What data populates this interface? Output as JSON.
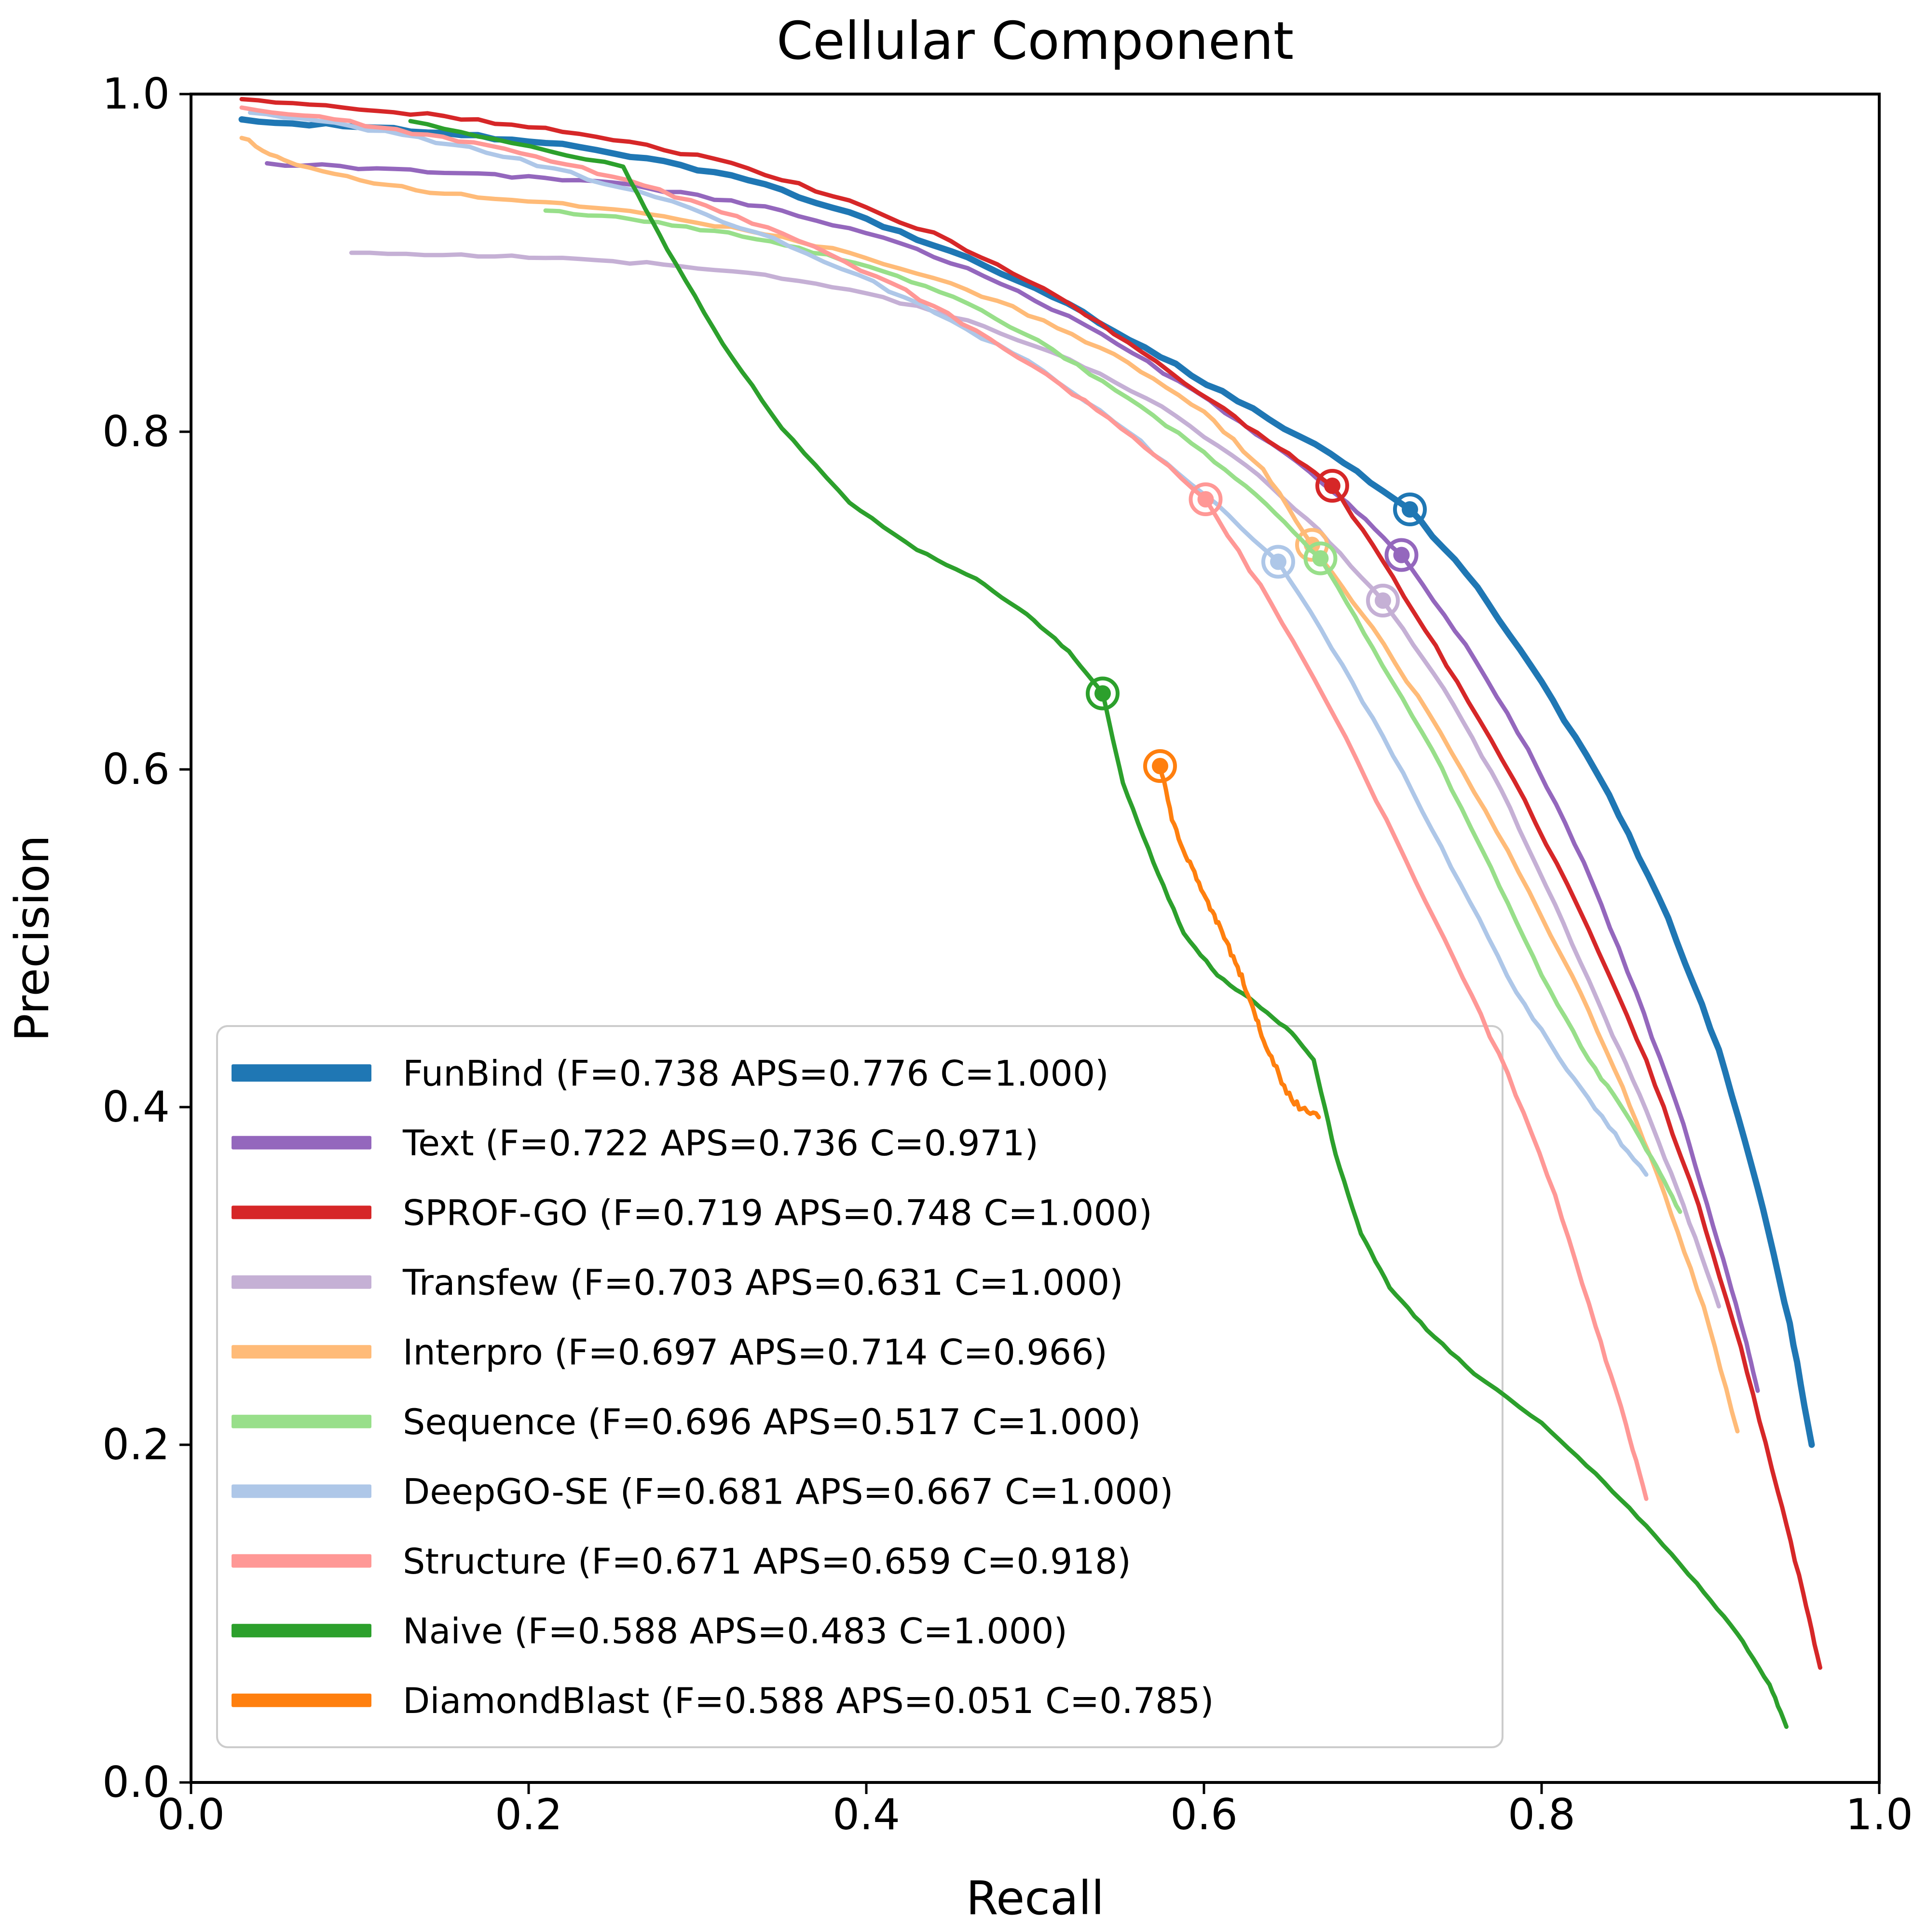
{
  "chart_data": {
    "type": "line",
    "title": "Cellular Component",
    "xlabel": "Recall",
    "ylabel": "Precision",
    "xlim": [
      0.0,
      1.0
    ],
    "ylim": [
      0.0,
      1.0
    ],
    "xticks": [
      "0.0",
      "0.2",
      "0.4",
      "0.6",
      "0.8",
      "1.0"
    ],
    "yticks": [
      "0.0",
      "0.2",
      "0.4",
      "0.6",
      "0.8",
      "1.0"
    ],
    "grid": false,
    "legend_position": "lower left",
    "series": [
      {
        "name": "FunBind",
        "legend_label": "FunBind (F=0.738 APS=0.776 C=1.000)",
        "color": "#1f77b4",
        "linewidth": 13,
        "f": 0.738,
        "aps": 0.776,
        "c": 1.0,
        "fmax_point": [
          0.722,
          0.754
        ],
        "jitter": 4,
        "points": [
          [
            0.03,
            0.985
          ],
          [
            0.09,
            0.981
          ],
          [
            0.15,
            0.977
          ],
          [
            0.21,
            0.971
          ],
          [
            0.27,
            0.962
          ],
          [
            0.33,
            0.949
          ],
          [
            0.39,
            0.93
          ],
          [
            0.45,
            0.907
          ],
          [
            0.51,
            0.88
          ],
          [
            0.565,
            0.85
          ],
          [
            0.62,
            0.818
          ],
          [
            0.675,
            0.787
          ],
          [
            0.722,
            0.754
          ],
          [
            0.762,
            0.708
          ],
          [
            0.8,
            0.652
          ],
          [
            0.84,
            0.585
          ],
          [
            0.875,
            0.512
          ],
          [
            0.905,
            0.434
          ],
          [
            0.928,
            0.352
          ],
          [
            0.947,
            0.272
          ],
          [
            0.96,
            0.2
          ]
        ]
      },
      {
        "name": "Text",
        "legend_label": "Text (F=0.722 APS=0.736 C=0.971)",
        "color": "#9467bd",
        "linewidth": 9,
        "f": 0.722,
        "aps": 0.736,
        "c": 0.971,
        "fmax_point": [
          0.717,
          0.727
        ],
        "jitter": 4,
        "points": [
          [
            0.045,
            0.959
          ],
          [
            0.11,
            0.956
          ],
          [
            0.17,
            0.953
          ],
          [
            0.23,
            0.949
          ],
          [
            0.29,
            0.942
          ],
          [
            0.35,
            0.931
          ],
          [
            0.41,
            0.915
          ],
          [
            0.47,
            0.892
          ],
          [
            0.53,
            0.863
          ],
          [
            0.585,
            0.83
          ],
          [
            0.64,
            0.793
          ],
          [
            0.685,
            0.758
          ],
          [
            0.717,
            0.727
          ],
          [
            0.755,
            0.674
          ],
          [
            0.792,
            0.612
          ],
          [
            0.825,
            0.545
          ],
          [
            0.856,
            0.468
          ],
          [
            0.884,
            0.39
          ],
          [
            0.905,
            0.318
          ],
          [
            0.92,
            0.265
          ],
          [
            0.928,
            0.232
          ]
        ]
      },
      {
        "name": "SPROF-GO",
        "legend_label": "SPROF-GO (F=0.719 APS=0.748 C=1.000)",
        "color": "#d62728",
        "linewidth": 9,
        "f": 0.719,
        "aps": 0.748,
        "c": 1.0,
        "fmax_point": [
          0.676,
          0.768
        ],
        "jitter": 4,
        "points": [
          [
            0.03,
            0.997
          ],
          [
            0.09,
            0.992
          ],
          [
            0.15,
            0.987
          ],
          [
            0.21,
            0.98
          ],
          [
            0.27,
            0.97
          ],
          [
            0.33,
            0.956
          ],
          [
            0.39,
            0.937
          ],
          [
            0.45,
            0.913
          ],
          [
            0.505,
            0.885
          ],
          [
            0.555,
            0.853
          ],
          [
            0.605,
            0.818
          ],
          [
            0.645,
            0.79
          ],
          [
            0.676,
            0.768
          ],
          [
            0.712,
            0.714
          ],
          [
            0.75,
            0.652
          ],
          [
            0.79,
            0.582
          ],
          [
            0.828,
            0.505
          ],
          [
            0.862,
            0.428
          ],
          [
            0.893,
            0.342
          ],
          [
            0.918,
            0.258
          ],
          [
            0.94,
            0.172
          ],
          [
            0.955,
            0.112
          ],
          [
            0.965,
            0.068
          ]
        ]
      },
      {
        "name": "Transfew",
        "legend_label": "Transfew (F=0.703 APS=0.631 C=1.000)",
        "color": "#c5b0d5",
        "linewidth": 9,
        "f": 0.703,
        "aps": 0.631,
        "c": 1.0,
        "fmax_point": [
          0.706,
          0.7
        ],
        "jitter": 3,
        "points": [
          [
            0.095,
            0.906
          ],
          [
            0.16,
            0.905
          ],
          [
            0.22,
            0.903
          ],
          [
            0.28,
            0.899
          ],
          [
            0.34,
            0.893
          ],
          [
            0.4,
            0.882
          ],
          [
            0.46,
            0.866
          ],
          [
            0.52,
            0.843
          ],
          [
            0.575,
            0.815
          ],
          [
            0.625,
            0.78
          ],
          [
            0.668,
            0.742
          ],
          [
            0.706,
            0.7
          ],
          [
            0.742,
            0.648
          ],
          [
            0.776,
            0.588
          ],
          [
            0.808,
            0.52
          ],
          [
            0.838,
            0.452
          ],
          [
            0.862,
            0.398
          ],
          [
            0.884,
            0.342
          ],
          [
            0.905,
            0.282
          ]
        ]
      },
      {
        "name": "Interpro",
        "legend_label": "Interpro (F=0.697 APS=0.714 C=0.966)",
        "color": "#ffbb78",
        "linewidth": 9,
        "f": 0.697,
        "aps": 0.714,
        "c": 0.966,
        "fmax_point": [
          0.664,
          0.733
        ],
        "jitter": 4,
        "points": [
          [
            0.03,
            0.974
          ],
          [
            0.055,
            0.961
          ],
          [
            0.1,
            0.949
          ],
          [
            0.15,
            0.941
          ],
          [
            0.21,
            0.936
          ],
          [
            0.27,
            0.929
          ],
          [
            0.33,
            0.919
          ],
          [
            0.39,
            0.906
          ],
          [
            0.45,
            0.888
          ],
          [
            0.505,
            0.866
          ],
          [
            0.555,
            0.841
          ],
          [
            0.6,
            0.812
          ],
          [
            0.635,
            0.778
          ],
          [
            0.664,
            0.733
          ],
          [
            0.7,
            0.684
          ],
          [
            0.74,
            0.622
          ],
          [
            0.78,
            0.552
          ],
          [
            0.818,
            0.478
          ],
          [
            0.848,
            0.412
          ],
          [
            0.873,
            0.348
          ],
          [
            0.896,
            0.282
          ],
          [
            0.916,
            0.208
          ]
        ]
      },
      {
        "name": "Sequence",
        "legend_label": "Sequence (F=0.696 APS=0.517 C=1.000)",
        "color": "#98df8a",
        "linewidth": 9,
        "f": 0.696,
        "aps": 0.517,
        "c": 1.0,
        "fmax_point": [
          0.669,
          0.725
        ],
        "jitter": 3,
        "points": [
          [
            0.21,
            0.931
          ],
          [
            0.26,
            0.926
          ],
          [
            0.31,
            0.919
          ],
          [
            0.36,
            0.909
          ],
          [
            0.41,
            0.895
          ],
          [
            0.46,
            0.876
          ],
          [
            0.51,
            0.849
          ],
          [
            0.555,
            0.82
          ],
          [
            0.6,
            0.788
          ],
          [
            0.637,
            0.757
          ],
          [
            0.669,
            0.725
          ],
          [
            0.7,
            0.672
          ],
          [
            0.735,
            0.612
          ],
          [
            0.77,
            0.542
          ],
          [
            0.8,
            0.478
          ],
          [
            0.828,
            0.428
          ],
          [
            0.85,
            0.396
          ],
          [
            0.868,
            0.365
          ],
          [
            0.882,
            0.338
          ]
        ]
      },
      {
        "name": "DeepGO-SE",
        "legend_label": "DeepGO-SE (F=0.681 APS=0.667 C=1.000)",
        "color": "#aec7e8",
        "linewidth": 9,
        "f": 0.681,
        "aps": 0.667,
        "c": 1.0,
        "fmax_point": [
          0.644,
          0.723
        ],
        "jitter": 4,
        "points": [
          [
            0.035,
            0.989
          ],
          [
            0.095,
            0.981
          ],
          [
            0.155,
            0.97
          ],
          [
            0.215,
            0.956
          ],
          [
            0.275,
            0.939
          ],
          [
            0.335,
            0.918
          ],
          [
            0.395,
            0.893
          ],
          [
            0.45,
            0.866
          ],
          [
            0.505,
            0.836
          ],
          [
            0.555,
            0.8
          ],
          [
            0.6,
            0.763
          ],
          [
            0.644,
            0.723
          ],
          [
            0.682,
            0.662
          ],
          [
            0.718,
            0.598
          ],
          [
            0.752,
            0.532
          ],
          [
            0.785,
            0.468
          ],
          [
            0.815,
            0.422
          ],
          [
            0.84,
            0.388
          ],
          [
            0.862,
            0.36
          ]
        ]
      },
      {
        "name": "Structure",
        "legend_label": "Structure (F=0.671 APS=0.659 C=0.918)",
        "color": "#ff9896",
        "linewidth": 9,
        "f": 0.671,
        "aps": 0.659,
        "c": 0.918,
        "fmax_point": [
          0.601,
          0.76
        ],
        "jitter": 4,
        "points": [
          [
            0.03,
            0.992
          ],
          [
            0.085,
            0.985
          ],
          [
            0.14,
            0.976
          ],
          [
            0.195,
            0.965
          ],
          [
            0.25,
            0.951
          ],
          [
            0.305,
            0.934
          ],
          [
            0.36,
            0.913
          ],
          [
            0.415,
            0.888
          ],
          [
            0.465,
            0.86
          ],
          [
            0.515,
            0.828
          ],
          [
            0.558,
            0.797
          ],
          [
            0.601,
            0.76
          ],
          [
            0.64,
            0.698
          ],
          [
            0.678,
            0.63
          ],
          [
            0.714,
            0.558
          ],
          [
            0.748,
            0.488
          ],
          [
            0.78,
            0.42
          ],
          [
            0.808,
            0.348
          ],
          [
            0.832,
            0.27
          ],
          [
            0.85,
            0.212
          ],
          [
            0.862,
            0.168
          ]
        ]
      },
      {
        "name": "Naive",
        "legend_label": "Naive (F=0.588 APS=0.483 C=1.000)",
        "color": "#2ca02c",
        "linewidth": 9,
        "f": 0.588,
        "aps": 0.483,
        "c": 1.0,
        "fmax_point": [
          0.54,
          0.645
        ],
        "jitter": 2,
        "points": [
          [
            0.13,
            0.984
          ],
          [
            0.19,
            0.971
          ],
          [
            0.256,
            0.957
          ],
          [
            0.282,
            0.908
          ],
          [
            0.315,
            0.852
          ],
          [
            0.35,
            0.802
          ],
          [
            0.39,
            0.758
          ],
          [
            0.43,
            0.73
          ],
          [
            0.465,
            0.713
          ],
          [
            0.495,
            0.692
          ],
          [
            0.52,
            0.67
          ],
          [
            0.54,
            0.645
          ],
          [
            0.552,
            0.592
          ],
          [
            0.57,
            0.545
          ],
          [
            0.588,
            0.503
          ],
          [
            0.608,
            0.478
          ],
          [
            0.63,
            0.462
          ],
          [
            0.652,
            0.444
          ],
          [
            0.665,
            0.428
          ],
          [
            0.678,
            0.372
          ],
          [
            0.693,
            0.325
          ],
          [
            0.71,
            0.293
          ],
          [
            0.732,
            0.268
          ],
          [
            0.76,
            0.242
          ],
          [
            0.8,
            0.213
          ],
          [
            0.832,
            0.183
          ],
          [
            0.862,
            0.152
          ],
          [
            0.892,
            0.118
          ],
          [
            0.916,
            0.088
          ],
          [
            0.935,
            0.058
          ],
          [
            0.945,
            0.033
          ]
        ]
      },
      {
        "name": "DiamondBlast",
        "legend_label": "DiamondBlast (F=0.588 APS=0.051 C=0.785)",
        "color": "#ff7f0e",
        "linewidth": 9,
        "f": 0.588,
        "aps": 0.051,
        "c": 0.785,
        "fmax_point": [
          0.574,
          0.602
        ],
        "jitter": 7,
        "points": [
          [
            0.574,
            0.602
          ],
          [
            0.581,
            0.57
          ],
          [
            0.589,
            0.549
          ],
          [
            0.597,
            0.533
          ],
          [
            0.605,
            0.516
          ],
          [
            0.612,
            0.5
          ],
          [
            0.62,
            0.483
          ],
          [
            0.627,
            0.464
          ],
          [
            0.633,
            0.446
          ],
          [
            0.64,
            0.43
          ],
          [
            0.649,
            0.408
          ],
          [
            0.658,
            0.399
          ],
          [
            0.668,
            0.394
          ]
        ]
      }
    ]
  }
}
